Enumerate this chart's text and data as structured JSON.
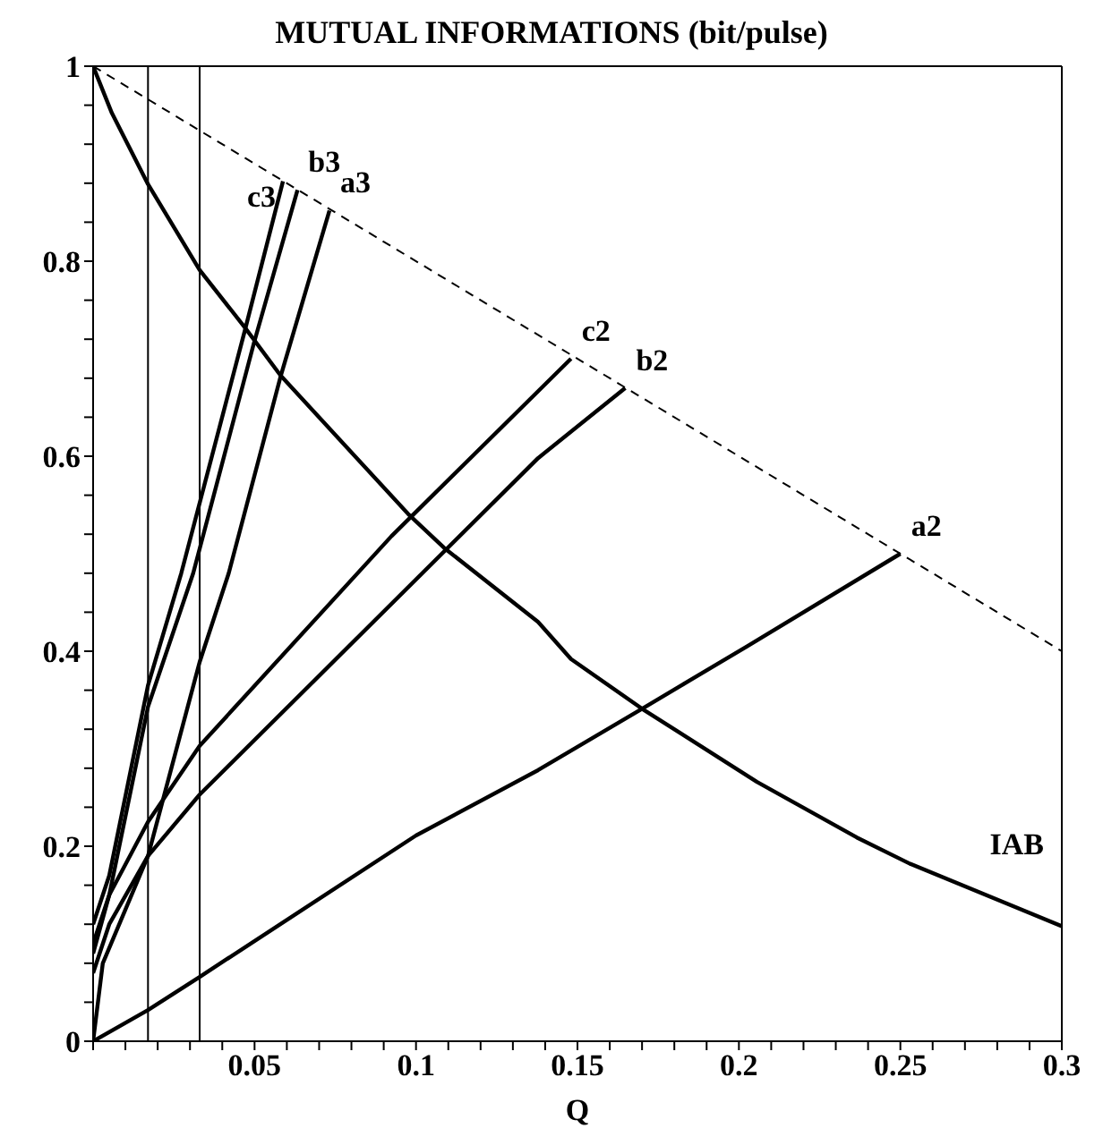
{
  "chart_data": {
    "type": "line",
    "title": "MUTUAL INFORMATIONS (bit/pulse)",
    "xlabel": "Q",
    "xlim": [
      0,
      0.3
    ],
    "ylim": [
      0,
      1
    ],
    "xticks": [
      {
        "value": 0,
        "label": null
      },
      {
        "value": 0.01,
        "label": null
      },
      {
        "value": 0.02,
        "label": null
      },
      {
        "value": 0.03,
        "label": null
      },
      {
        "value": 0.04,
        "label": null
      },
      0.05,
      {
        "value": 0.06,
        "label": null
      },
      {
        "value": 0.07,
        "label": null
      },
      {
        "value": 0.08,
        "label": null
      },
      {
        "value": 0.09,
        "label": null
      },
      0.1,
      {
        "value": 0.11,
        "label": null
      },
      {
        "value": 0.12,
        "label": null
      },
      {
        "value": 0.13,
        "label": null
      },
      {
        "value": 0.14,
        "label": null
      },
      0.15,
      {
        "value": 0.16,
        "label": null
      },
      {
        "value": 0.17,
        "label": null
      },
      {
        "value": 0.18,
        "label": null
      },
      {
        "value": 0.19,
        "label": null
      },
      0.2,
      {
        "value": 0.21,
        "label": null
      },
      {
        "value": 0.22,
        "label": null
      },
      {
        "value": 0.23,
        "label": null
      },
      {
        "value": 0.24,
        "label": null
      },
      0.25,
      {
        "value": 0.26,
        "label": null
      },
      {
        "value": 0.27,
        "label": null
      },
      {
        "value": 0.28,
        "label": null
      },
      {
        "value": 0.29,
        "label": null
      },
      0.3
    ],
    "yticks": [
      0,
      {
        "value": 0.04,
        "label": null
      },
      {
        "value": 0.08,
        "label": null
      },
      {
        "value": 0.12,
        "label": null
      },
      {
        "value": 0.16,
        "label": null
      },
      0.2,
      {
        "value": 0.24,
        "label": null
      },
      {
        "value": 0.28,
        "label": null
      },
      {
        "value": 0.32,
        "label": null
      },
      {
        "value": 0.36,
        "label": null
      },
      0.4,
      {
        "value": 0.44,
        "label": null
      },
      {
        "value": 0.48,
        "label": null
      },
      {
        "value": 0.52,
        "label": null
      },
      {
        "value": 0.56,
        "label": null
      },
      0.6,
      {
        "value": 0.64,
        "label": null
      },
      {
        "value": 0.68,
        "label": null
      },
      {
        "value": 0.72,
        "label": null
      },
      {
        "value": 0.76,
        "label": null
      },
      0.8,
      {
        "value": 0.84,
        "label": null
      },
      {
        "value": 0.88,
        "label": null
      },
      {
        "value": 0.92,
        "label": null
      },
      {
        "value": 0.96,
        "label": null
      },
      1
    ],
    "marker": "none",
    "ref_lines": [
      {
        "axis": "x",
        "value": 0.017,
        "color": "#000000"
      },
      {
        "axis": "x",
        "value": 0.033,
        "color": "#000000"
      }
    ],
    "series": [
      {
        "color": "#000000",
        "line_style": "dashed",
        "x": [
          0,
          0.3
        ],
        "values": [
          1,
          0.4
        ]
      },
      {
        "name": "IAB",
        "color": "#000000",
        "x": [
          0,
          0.0058,
          0.017,
          0.033,
          0.047,
          0.058,
          0.0975,
          0.1087,
          0.1378,
          0.148,
          0.17,
          0.2056,
          0.2365,
          0.253,
          0.3
        ],
        "values": [
          1,
          0.952,
          0.879,
          0.791,
          0.732,
          0.683,
          0.541,
          0.506,
          0.43,
          0.392,
          0.341,
          0.266,
          0.209,
          0.182,
          0.118
        ]
      },
      {
        "name": "a2",
        "color": "#000000",
        "x": [
          0,
          0.017,
          0.033,
          0.1,
          0.1378,
          0.17,
          0.2025,
          0.25
        ],
        "values": [
          0,
          0.032,
          0.066,
          0.211,
          0.278,
          0.341,
          0.405,
          0.5
        ]
      },
      {
        "name": "b2",
        "color": "#000000",
        "x": [
          0,
          0.005,
          0.017,
          0.033,
          0.1378,
          0.1648
        ],
        "values": [
          0.07,
          0.12,
          0.19,
          0.253,
          0.598,
          0.67
        ]
      },
      {
        "name": "c2",
        "color": "#000000",
        "x": [
          0,
          0.005,
          0.017,
          0.033,
          0.0924,
          0.148
        ],
        "values": [
          0.09,
          0.15,
          0.225,
          0.303,
          0.518,
          0.7
        ]
      },
      {
        "name": "a3",
        "color": "#000000",
        "x": [
          0,
          0.003,
          0.017,
          0.033,
          0.042,
          0.058,
          0.0732
        ],
        "values": [
          0,
          0.08,
          0.19,
          0.389,
          0.48,
          0.681,
          0.852
        ]
      },
      {
        "name": "b3",
        "color": "#000000",
        "x": [
          0,
          0.005,
          0.017,
          0.031,
          0.0498,
          0.0633
        ],
        "values": [
          0.1,
          0.15,
          0.343,
          0.48,
          0.716,
          0.873
        ]
      },
      {
        "name": "c3",
        "color": "#000000",
        "x": [
          0,
          0.005,
          0.017,
          0.0273,
          0.047,
          0.0588
        ],
        "values": [
          0.12,
          0.17,
          0.365,
          0.48,
          0.729,
          0.882
        ]
      }
    ]
  }
}
